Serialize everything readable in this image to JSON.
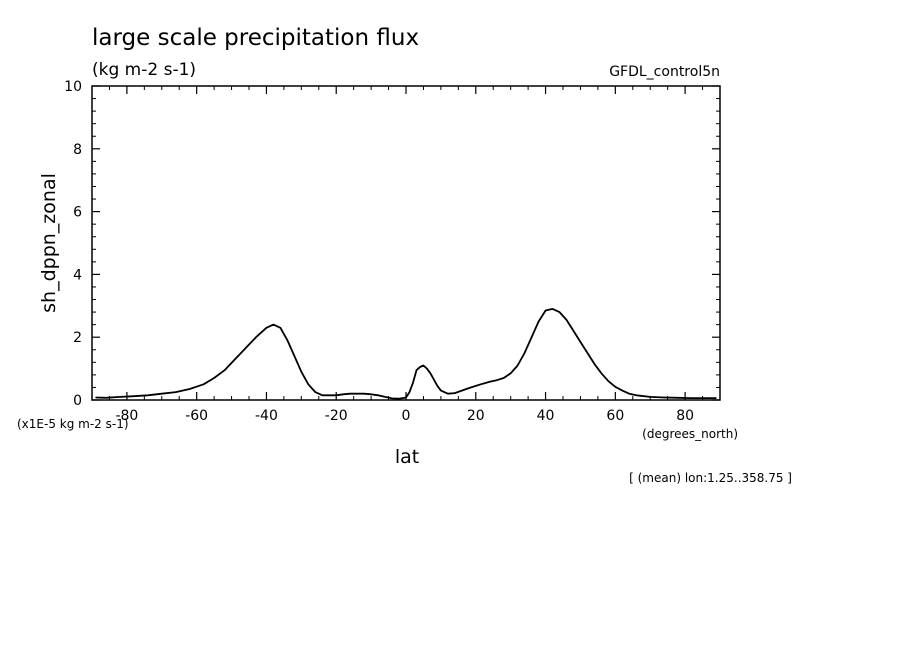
{
  "chart_data": {
    "type": "line",
    "title": "large scale precipitation flux",
    "subtitle": "(kg m-2 s-1)",
    "dataset": "GFDL_control5n",
    "xlabel": "lat",
    "x_units": "(degrees_north)",
    "ylabel": "sh_dppn_zonal",
    "y_scale_note": "(x1E-5 kg m-2 s-1)",
    "footnote": "[ (mean) lon:1.25..358.75 ]",
    "xlim": [
      -90,
      90
    ],
    "ylim": [
      0,
      10
    ],
    "x_ticks": [
      "-80",
      "-60",
      "-40",
      "-20",
      "0",
      "20",
      "40",
      "60",
      "80"
    ],
    "y_ticks": [
      "0",
      "2",
      "4",
      "6",
      "8",
      "10"
    ],
    "grid": false,
    "line_color": "#000000",
    "series": [
      {
        "x": [
          -89,
          -86,
          -82,
          -78,
          -74,
          -70,
          -66,
          -62,
          -58,
          -55,
          -52,
          -49,
          -46,
          -43,
          -40,
          -38,
          -36,
          -34,
          -32,
          -30,
          -28,
          -26,
          -24,
          -22,
          -20,
          -18,
          -16,
          -14,
          -12,
          -10,
          -8,
          -6,
          -4,
          -2,
          0,
          1,
          2,
          3,
          4,
          5,
          6,
          7,
          8,
          9,
          10,
          12,
          14,
          16,
          18,
          20,
          22,
          24,
          26,
          28,
          30,
          32,
          34,
          36,
          38,
          40,
          42,
          44,
          46,
          48,
          50,
          52,
          54,
          56,
          58,
          60,
          62,
          64,
          66,
          70,
          74,
          78,
          82,
          86,
          89
        ],
        "y": [
          0.08,
          0.07,
          0.1,
          0.12,
          0.15,
          0.2,
          0.25,
          0.35,
          0.5,
          0.7,
          0.95,
          1.3,
          1.65,
          2.0,
          2.3,
          2.4,
          2.3,
          1.9,
          1.4,
          0.9,
          0.5,
          0.25,
          0.15,
          0.15,
          0.15,
          0.18,
          0.2,
          0.2,
          0.2,
          0.18,
          0.15,
          0.1,
          0.05,
          0.04,
          0.08,
          0.25,
          0.55,
          0.95,
          1.05,
          1.1,
          1.0,
          0.85,
          0.65,
          0.45,
          0.3,
          0.2,
          0.22,
          0.3,
          0.38,
          0.45,
          0.52,
          0.58,
          0.63,
          0.7,
          0.85,
          1.1,
          1.5,
          2.0,
          2.5,
          2.85,
          2.9,
          2.8,
          2.55,
          2.2,
          1.85,
          1.5,
          1.15,
          0.85,
          0.6,
          0.42,
          0.3,
          0.2,
          0.15,
          0.1,
          0.08,
          0.07,
          0.06,
          0.06,
          0.06
        ]
      }
    ]
  }
}
